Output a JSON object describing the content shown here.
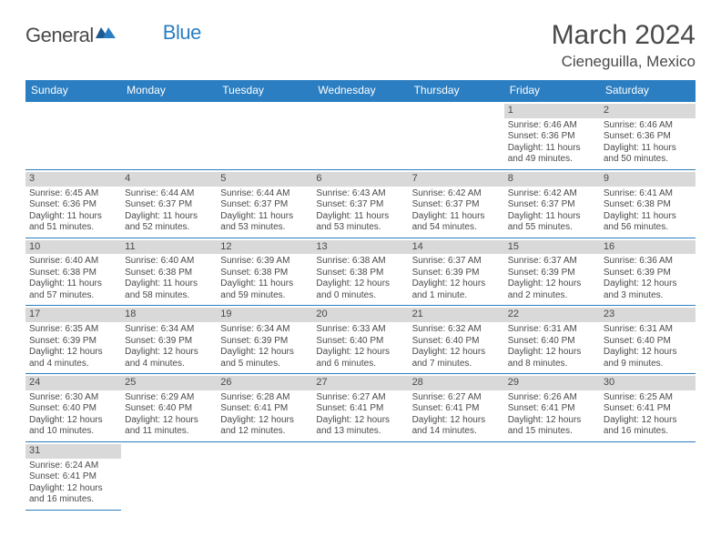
{
  "logo": {
    "text1": "General",
    "text2": "Blue"
  },
  "title": "March 2024",
  "location": "Cieneguilla, Mexico",
  "colors": {
    "header_bg": "#2b7ec1",
    "header_text": "#ffffff",
    "daynum_bg": "#d9d9d9",
    "text": "#4a4a4a",
    "row_border": "#2b7ec1"
  },
  "weekdays": [
    "Sunday",
    "Monday",
    "Tuesday",
    "Wednesday",
    "Thursday",
    "Friday",
    "Saturday"
  ],
  "weeks": [
    [
      null,
      null,
      null,
      null,
      null,
      {
        "n": "1",
        "sr": "Sunrise: 6:46 AM",
        "ss": "Sunset: 6:36 PM",
        "dl": "Daylight: 11 hours and 49 minutes."
      },
      {
        "n": "2",
        "sr": "Sunrise: 6:46 AM",
        "ss": "Sunset: 6:36 PM",
        "dl": "Daylight: 11 hours and 50 minutes."
      }
    ],
    [
      {
        "n": "3",
        "sr": "Sunrise: 6:45 AM",
        "ss": "Sunset: 6:36 PM",
        "dl": "Daylight: 11 hours and 51 minutes."
      },
      {
        "n": "4",
        "sr": "Sunrise: 6:44 AM",
        "ss": "Sunset: 6:37 PM",
        "dl": "Daylight: 11 hours and 52 minutes."
      },
      {
        "n": "5",
        "sr": "Sunrise: 6:44 AM",
        "ss": "Sunset: 6:37 PM",
        "dl": "Daylight: 11 hours and 53 minutes."
      },
      {
        "n": "6",
        "sr": "Sunrise: 6:43 AM",
        "ss": "Sunset: 6:37 PM",
        "dl": "Daylight: 11 hours and 53 minutes."
      },
      {
        "n": "7",
        "sr": "Sunrise: 6:42 AM",
        "ss": "Sunset: 6:37 PM",
        "dl": "Daylight: 11 hours and 54 minutes."
      },
      {
        "n": "8",
        "sr": "Sunrise: 6:42 AM",
        "ss": "Sunset: 6:37 PM",
        "dl": "Daylight: 11 hours and 55 minutes."
      },
      {
        "n": "9",
        "sr": "Sunrise: 6:41 AM",
        "ss": "Sunset: 6:38 PM",
        "dl": "Daylight: 11 hours and 56 minutes."
      }
    ],
    [
      {
        "n": "10",
        "sr": "Sunrise: 6:40 AM",
        "ss": "Sunset: 6:38 PM",
        "dl": "Daylight: 11 hours and 57 minutes."
      },
      {
        "n": "11",
        "sr": "Sunrise: 6:40 AM",
        "ss": "Sunset: 6:38 PM",
        "dl": "Daylight: 11 hours and 58 minutes."
      },
      {
        "n": "12",
        "sr": "Sunrise: 6:39 AM",
        "ss": "Sunset: 6:38 PM",
        "dl": "Daylight: 11 hours and 59 minutes."
      },
      {
        "n": "13",
        "sr": "Sunrise: 6:38 AM",
        "ss": "Sunset: 6:38 PM",
        "dl": "Daylight: 12 hours and 0 minutes."
      },
      {
        "n": "14",
        "sr": "Sunrise: 6:37 AM",
        "ss": "Sunset: 6:39 PM",
        "dl": "Daylight: 12 hours and 1 minute."
      },
      {
        "n": "15",
        "sr": "Sunrise: 6:37 AM",
        "ss": "Sunset: 6:39 PM",
        "dl": "Daylight: 12 hours and 2 minutes."
      },
      {
        "n": "16",
        "sr": "Sunrise: 6:36 AM",
        "ss": "Sunset: 6:39 PM",
        "dl": "Daylight: 12 hours and 3 minutes."
      }
    ],
    [
      {
        "n": "17",
        "sr": "Sunrise: 6:35 AM",
        "ss": "Sunset: 6:39 PM",
        "dl": "Daylight: 12 hours and 4 minutes."
      },
      {
        "n": "18",
        "sr": "Sunrise: 6:34 AM",
        "ss": "Sunset: 6:39 PM",
        "dl": "Daylight: 12 hours and 4 minutes."
      },
      {
        "n": "19",
        "sr": "Sunrise: 6:34 AM",
        "ss": "Sunset: 6:39 PM",
        "dl": "Daylight: 12 hours and 5 minutes."
      },
      {
        "n": "20",
        "sr": "Sunrise: 6:33 AM",
        "ss": "Sunset: 6:40 PM",
        "dl": "Daylight: 12 hours and 6 minutes."
      },
      {
        "n": "21",
        "sr": "Sunrise: 6:32 AM",
        "ss": "Sunset: 6:40 PM",
        "dl": "Daylight: 12 hours and 7 minutes."
      },
      {
        "n": "22",
        "sr": "Sunrise: 6:31 AM",
        "ss": "Sunset: 6:40 PM",
        "dl": "Daylight: 12 hours and 8 minutes."
      },
      {
        "n": "23",
        "sr": "Sunrise: 6:31 AM",
        "ss": "Sunset: 6:40 PM",
        "dl": "Daylight: 12 hours and 9 minutes."
      }
    ],
    [
      {
        "n": "24",
        "sr": "Sunrise: 6:30 AM",
        "ss": "Sunset: 6:40 PM",
        "dl": "Daylight: 12 hours and 10 minutes."
      },
      {
        "n": "25",
        "sr": "Sunrise: 6:29 AM",
        "ss": "Sunset: 6:40 PM",
        "dl": "Daylight: 12 hours and 11 minutes."
      },
      {
        "n": "26",
        "sr": "Sunrise: 6:28 AM",
        "ss": "Sunset: 6:41 PM",
        "dl": "Daylight: 12 hours and 12 minutes."
      },
      {
        "n": "27",
        "sr": "Sunrise: 6:27 AM",
        "ss": "Sunset: 6:41 PM",
        "dl": "Daylight: 12 hours and 13 minutes."
      },
      {
        "n": "28",
        "sr": "Sunrise: 6:27 AM",
        "ss": "Sunset: 6:41 PM",
        "dl": "Daylight: 12 hours and 14 minutes."
      },
      {
        "n": "29",
        "sr": "Sunrise: 6:26 AM",
        "ss": "Sunset: 6:41 PM",
        "dl": "Daylight: 12 hours and 15 minutes."
      },
      {
        "n": "30",
        "sr": "Sunrise: 6:25 AM",
        "ss": "Sunset: 6:41 PM",
        "dl": "Daylight: 12 hours and 16 minutes."
      }
    ],
    [
      {
        "n": "31",
        "sr": "Sunrise: 6:24 AM",
        "ss": "Sunset: 6:41 PM",
        "dl": "Daylight: 12 hours and 16 minutes."
      },
      null,
      null,
      null,
      null,
      null,
      null
    ]
  ]
}
